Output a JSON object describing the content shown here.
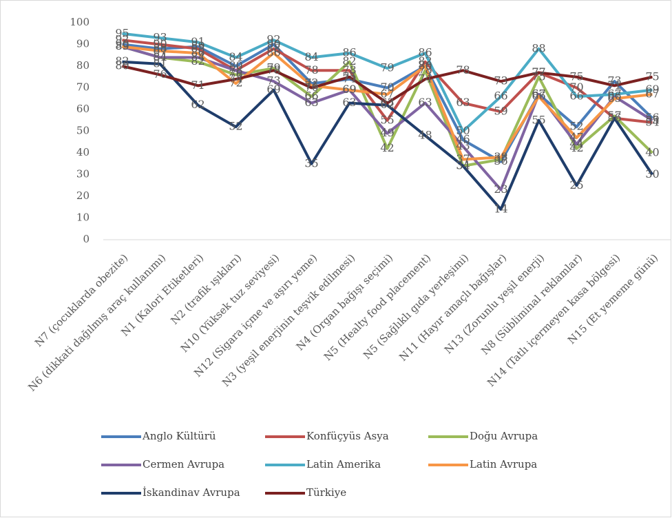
{
  "chart_data": {
    "type": "line",
    "categories": [
      "N7 (çocuklarda obezite)",
      "N6 (dikkati dağılmış araç kullanımı)",
      "N1 (Kalori Etiketleri)",
      "N2 (trafik ışıkları)",
      "N10 (Yüksek tuz seviyesi)",
      "N12 (Sigara içme ve aşırı yeme)",
      "N3 (yeşil enerjinin teşvik edilmesi)",
      "N4 (Organ bağışı seçimi)",
      "N5 (Healty food placement)",
      "N5 (Sağlıklı gıda yerleşimi)",
      "N11 (Hayır amaçlı bağışlar)",
      "N13 (Zorunlu yeşil enerji)",
      "N8 (Sübliminal reklamlar)",
      "N14 (Tatlı içermeyen kasa bölgesi)",
      "N15 (Et yememe günü)"
    ],
    "series": [
      {
        "name": "Anglo Kültürü",
        "color": "#4a7ebb",
        "values": [
          90,
          88,
          89,
          80,
          90,
          72,
          74,
          70,
          80,
          46,
          36,
          67,
          52,
          73,
          56
        ]
      },
      {
        "name": "Konfüçyüs Asya",
        "color": "#c0504d",
        "values": [
          92,
          90,
          88,
          78,
          88,
          78,
          78,
          55,
          82,
          63,
          59,
          77,
          70,
          56,
          54
        ]
      },
      {
        "name": "Doğu Avrupa",
        "color": "#9bbb59",
        "values": [
          89,
          84,
          82,
          76,
          79,
          66,
          82,
          42,
          78,
          34,
          37,
          75,
          42,
          57,
          40
        ]
      },
      {
        "name": "Cermen Avrupa",
        "color": "#8064a2",
        "values": [
          89,
          84,
          84,
          78,
          73,
          63,
          69,
          49,
          63,
          43,
          23,
          67,
          44,
          66,
          55
        ]
      },
      {
        "name": "Latin Amerika",
        "color": "#4bacc6",
        "values": [
          95,
          93,
          91,
          84,
          92,
          84,
          86,
          79,
          86,
          50,
          66,
          88,
          66,
          67,
          69
        ]
      },
      {
        "name": "Latin Avrupa",
        "color": "#f79646",
        "values": [
          89,
          87,
          86,
          72,
          86,
          71,
          69,
          67,
          80,
          37,
          38,
          66,
          47,
          65,
          67
        ]
      },
      {
        "name": "İskandinav Avrupa",
        "color": "#1f3d6b",
        "values": [
          82,
          81,
          62,
          52,
          69,
          35,
          63,
          62,
          48,
          34,
          14,
          55,
          25,
          56,
          30
        ]
      },
      {
        "name": "Türkiye",
        "color": "#7b2121",
        "values": [
          80,
          76,
          71,
          74,
          78,
          70,
          75,
          63,
          74,
          78,
          73,
          77,
          75,
          71,
          75
        ]
      }
    ],
    "ylim": [
      0,
      100
    ],
    "yticks": [
      0,
      10,
      20,
      30,
      40,
      50,
      60,
      70,
      80,
      90,
      100
    ],
    "grid": false,
    "legend": "bottom"
  }
}
